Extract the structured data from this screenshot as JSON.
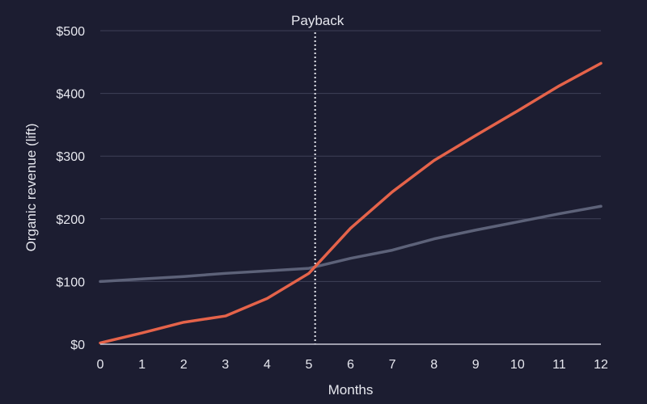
{
  "chart_data": {
    "type": "line",
    "title": "",
    "xlabel": "Months",
    "ylabel": "Organic revenue (lift)",
    "x": [
      0,
      1,
      2,
      3,
      4,
      5,
      6,
      7,
      8,
      9,
      10,
      11,
      12
    ],
    "xlim": [
      0,
      12
    ],
    "ylim": [
      0,
      500
    ],
    "x_ticks": [
      "0",
      "1",
      "2",
      "3",
      "4",
      "5",
      "6",
      "7",
      "8",
      "9",
      "10",
      "11",
      "12"
    ],
    "y_ticks": [
      {
        "value": 0,
        "label": "$0"
      },
      {
        "value": 100,
        "label": "$100"
      },
      {
        "value": 200,
        "label": "$200"
      },
      {
        "value": 300,
        "label": "$300"
      },
      {
        "value": 400,
        "label": "$400"
      },
      {
        "value": 500,
        "label": "$500"
      }
    ],
    "grid": true,
    "series": [
      {
        "color": "#5d6279",
        "values": [
          100,
          104,
          108,
          113,
          117,
          121,
          137,
          150,
          168,
          182,
          195,
          208,
          220
        ]
      },
      {
        "color": "#e5634a",
        "values": [
          2,
          18,
          35,
          45,
          73,
          113,
          185,
          243,
          293,
          333,
          372,
          412,
          448
        ]
      }
    ],
    "annotations": [
      {
        "type": "vertical-line",
        "x": 5.15,
        "label": "Payback"
      }
    ]
  }
}
